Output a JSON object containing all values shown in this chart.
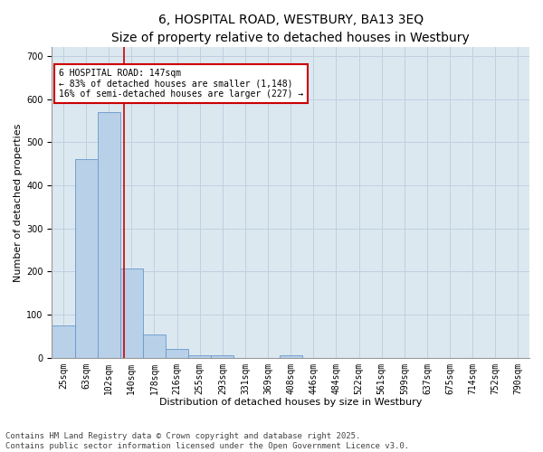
{
  "title": "6, HOSPITAL ROAD, WESTBURY, BA13 3EQ",
  "subtitle": "Size of property relative to detached houses in Westbury",
  "xlabel": "Distribution of detached houses by size in Westbury",
  "ylabel": "Number of detached properties",
  "categories": [
    "25sqm",
    "63sqm",
    "102sqm",
    "140sqm",
    "178sqm",
    "216sqm",
    "255sqm",
    "293sqm",
    "331sqm",
    "369sqm",
    "408sqm",
    "446sqm",
    "484sqm",
    "522sqm",
    "561sqm",
    "599sqm",
    "637sqm",
    "675sqm",
    "714sqm",
    "752sqm",
    "790sqm"
  ],
  "values": [
    75,
    460,
    570,
    207,
    53,
    20,
    5,
    5,
    0,
    0,
    5,
    0,
    0,
    0,
    0,
    0,
    0,
    0,
    0,
    0,
    0
  ],
  "bar_color": "#b8d0e8",
  "bar_edge_color": "#6699cc",
  "grid_color": "#c0d0e0",
  "background_color": "#dce8f0",
  "plot_bg_color": "#dce8f0",
  "red_line_label": "6 HOSPITAL ROAD: 147sqm",
  "annotation_line1": "← 83% of detached houses are smaller (1,148)",
  "annotation_line2": "16% of semi-detached houses are larger (227) →",
  "annotation_box_color": "#ffffff",
  "annotation_border_color": "#cc0000",
  "red_line_color": "#cc0000",
  "footer1": "Contains HM Land Registry data © Crown copyright and database right 2025.",
  "footer2": "Contains public sector information licensed under the Open Government Licence v3.0.",
  "ylim": [
    0,
    720
  ],
  "yticks": [
    0,
    100,
    200,
    300,
    400,
    500,
    600,
    700
  ],
  "title_fontsize": 10,
  "subtitle_fontsize": 9,
  "axis_label_fontsize": 8,
  "tick_fontsize": 7,
  "annotation_fontsize": 7,
  "footer_fontsize": 6.5
}
